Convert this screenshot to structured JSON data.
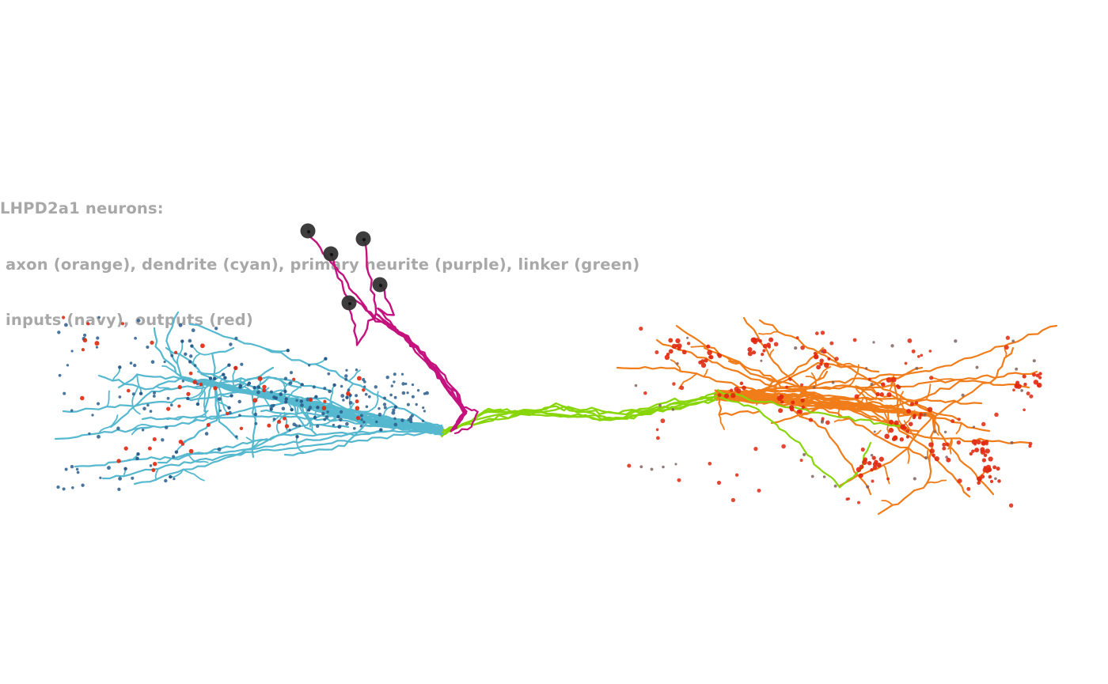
{
  "caption": {
    "line1": "LHPD2a1 neurons:",
    "line2": " axon (orange), dendrite (cyan), primary neurite (purple), linker (green)",
    "line3": " inputs (navy), outputs (red)"
  },
  "colors": {
    "axon": "#f07d1a",
    "dendrite": "#55b8cf",
    "primary_neurite": "#c4127f",
    "linker": "#88d60a",
    "inputs": "#2a5d8c",
    "outputs": "#e0280e",
    "soma": "#333333",
    "caption_text": "#a8a8a8",
    "background": "#ffffff"
  },
  "neuron_count": 5
}
